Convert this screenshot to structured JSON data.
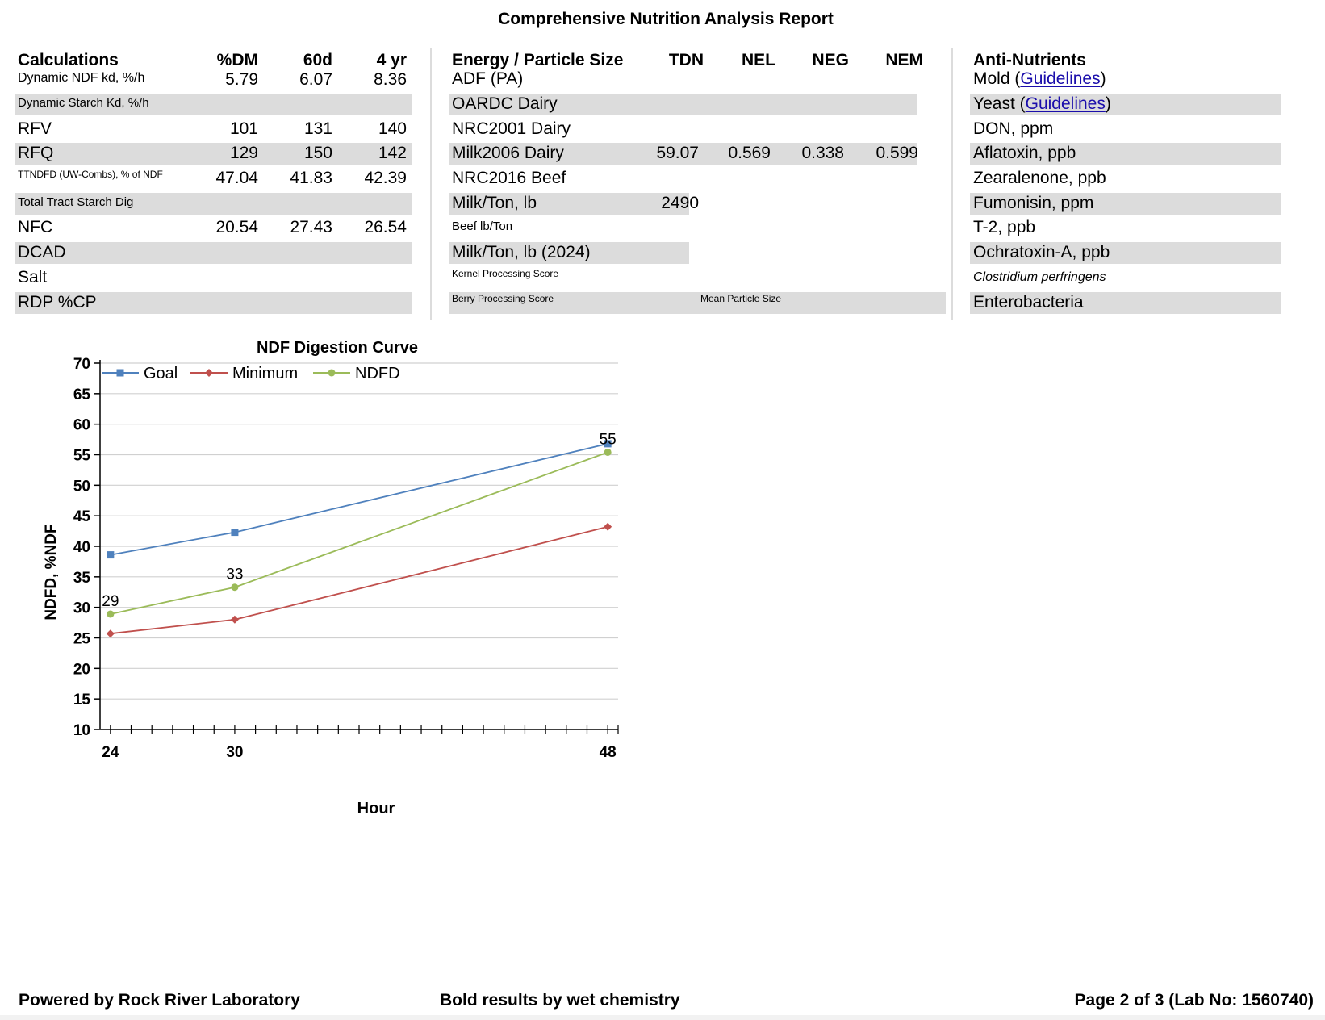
{
  "report": {
    "title": "Comprehensive Nutrition Analysis Report"
  },
  "calculations": {
    "header": {
      "label": "Calculations",
      "col1": "%DM",
      "col2": "60d",
      "col3": "4 yr"
    },
    "first_row": {
      "label": "Dynamic NDF kd, %/h",
      "v1": "5.79",
      "v2": "6.07",
      "v3": "8.36"
    },
    "rows": [
      {
        "label": "Dynamic Starch Kd, %/h",
        "v1": "",
        "v2": "",
        "v3": ""
      },
      {
        "label": "RFV",
        "v1": "101",
        "v2": "131",
        "v3": "140"
      },
      {
        "label": "RFQ",
        "v1": "129",
        "v2": "150",
        "v3": "142"
      },
      {
        "label": "TTNDFD (UW-Combs), % of NDF",
        "v1": "47.04",
        "v2": "41.83",
        "v3": "42.39"
      },
      {
        "label": "Total Tract Starch Dig",
        "v1": "",
        "v2": "",
        "v3": ""
      },
      {
        "label": "NFC",
        "v1": "20.54",
        "v2": "27.43",
        "v3": "26.54"
      },
      {
        "label": "DCAD",
        "v1": "",
        "v2": "",
        "v3": ""
      },
      {
        "label": "Salt",
        "v1": "",
        "v2": "",
        "v3": ""
      },
      {
        "label": "RDP %CP",
        "v1": "",
        "v2": "",
        "v3": ""
      }
    ]
  },
  "energy": {
    "header": {
      "label": "Energy / Particle Size",
      "col1": "TDN",
      "col2": "NEL",
      "col3": "NEG",
      "col4": "NEM"
    },
    "first_row": {
      "label": "ADF (PA)"
    },
    "rows": [
      {
        "label": "OARDC Dairy",
        "v1": "",
        "v2": "",
        "v3": "",
        "v4": ""
      },
      {
        "label": "NRC2001 Dairy",
        "v1": "",
        "v2": "",
        "v3": "",
        "v4": ""
      },
      {
        "label": "Milk2006 Dairy",
        "v1": "59.07",
        "v2": "0.569",
        "v3": "0.338",
        "v4": "0.599"
      },
      {
        "label": "NRC2016 Beef",
        "v1": "",
        "v2": "",
        "v3": "",
        "v4": ""
      },
      {
        "label": "Milk/Ton, lb",
        "v1": "2490",
        "v2": "",
        "v3": "",
        "v4": ""
      },
      {
        "label": "Beef lb/Ton",
        "v1": "",
        "v2": "",
        "v3": "",
        "v4": ""
      },
      {
        "label": "Milk/Ton, lb (2024)",
        "v1": "",
        "v2": "",
        "v3": "",
        "v4": ""
      },
      {
        "label": "Kernel Processing Score",
        "v1": "",
        "v2": "",
        "v3": "",
        "v4": ""
      },
      {
        "label": "Berry Processing Score",
        "extra": "Mean Particle Size"
      }
    ]
  },
  "anti_nutrients": {
    "header": {
      "label": "Anti-Nutrients"
    },
    "first_row": {
      "prefix": "Mold (",
      "link": "Guidelines",
      "suffix": ")"
    },
    "yeast": {
      "prefix": "Yeast (",
      "link": "Guidelines",
      "suffix": ")"
    },
    "rows": [
      {
        "label": "DON, ppm"
      },
      {
        "label": "Aflatoxin, ppb"
      },
      {
        "label": "Zearalenone, ppb"
      },
      {
        "label": "Fumonisin, ppm"
      },
      {
        "label": "T-2, ppb"
      },
      {
        "label": "Ochratoxin-A, ppb"
      },
      {
        "label": "Clostridium perfringens"
      },
      {
        "label": "Enterobacteria"
      }
    ]
  },
  "chart_data": {
    "type": "line",
    "title": "NDF Digestion Curve",
    "xlabel": "Hour",
    "ylabel": "NDFD, %NDF",
    "x": [
      24,
      30,
      48
    ],
    "xlim": [
      23.5,
      48.5
    ],
    "ylim": [
      10,
      70
    ],
    "y_ticks": [
      10,
      15,
      20,
      25,
      30,
      35,
      40,
      45,
      50,
      55,
      60,
      65,
      70
    ],
    "x_tick_labels": [
      "24",
      "30",
      "48"
    ],
    "grid": true,
    "legend": "top-left",
    "series": [
      {
        "name": "Goal",
        "color": "#4f81bd",
        "marker": "square",
        "values": [
          38.6,
          42.3,
          56.8
        ]
      },
      {
        "name": "Minimum",
        "color": "#c0504d",
        "marker": "diamond",
        "values": [
          25.7,
          28.0,
          43.2
        ]
      },
      {
        "name": "NDFD",
        "color": "#9bbb59",
        "marker": "circle",
        "values": [
          28.9,
          33.3,
          55.4
        ],
        "labels": [
          "29",
          "33",
          "55"
        ]
      }
    ]
  },
  "footer": {
    "left": "Powered by Rock River Laboratory",
    "center": "Bold results by wet chemistry",
    "right": "Page 2 of 3 (Lab No: 1560740)"
  }
}
